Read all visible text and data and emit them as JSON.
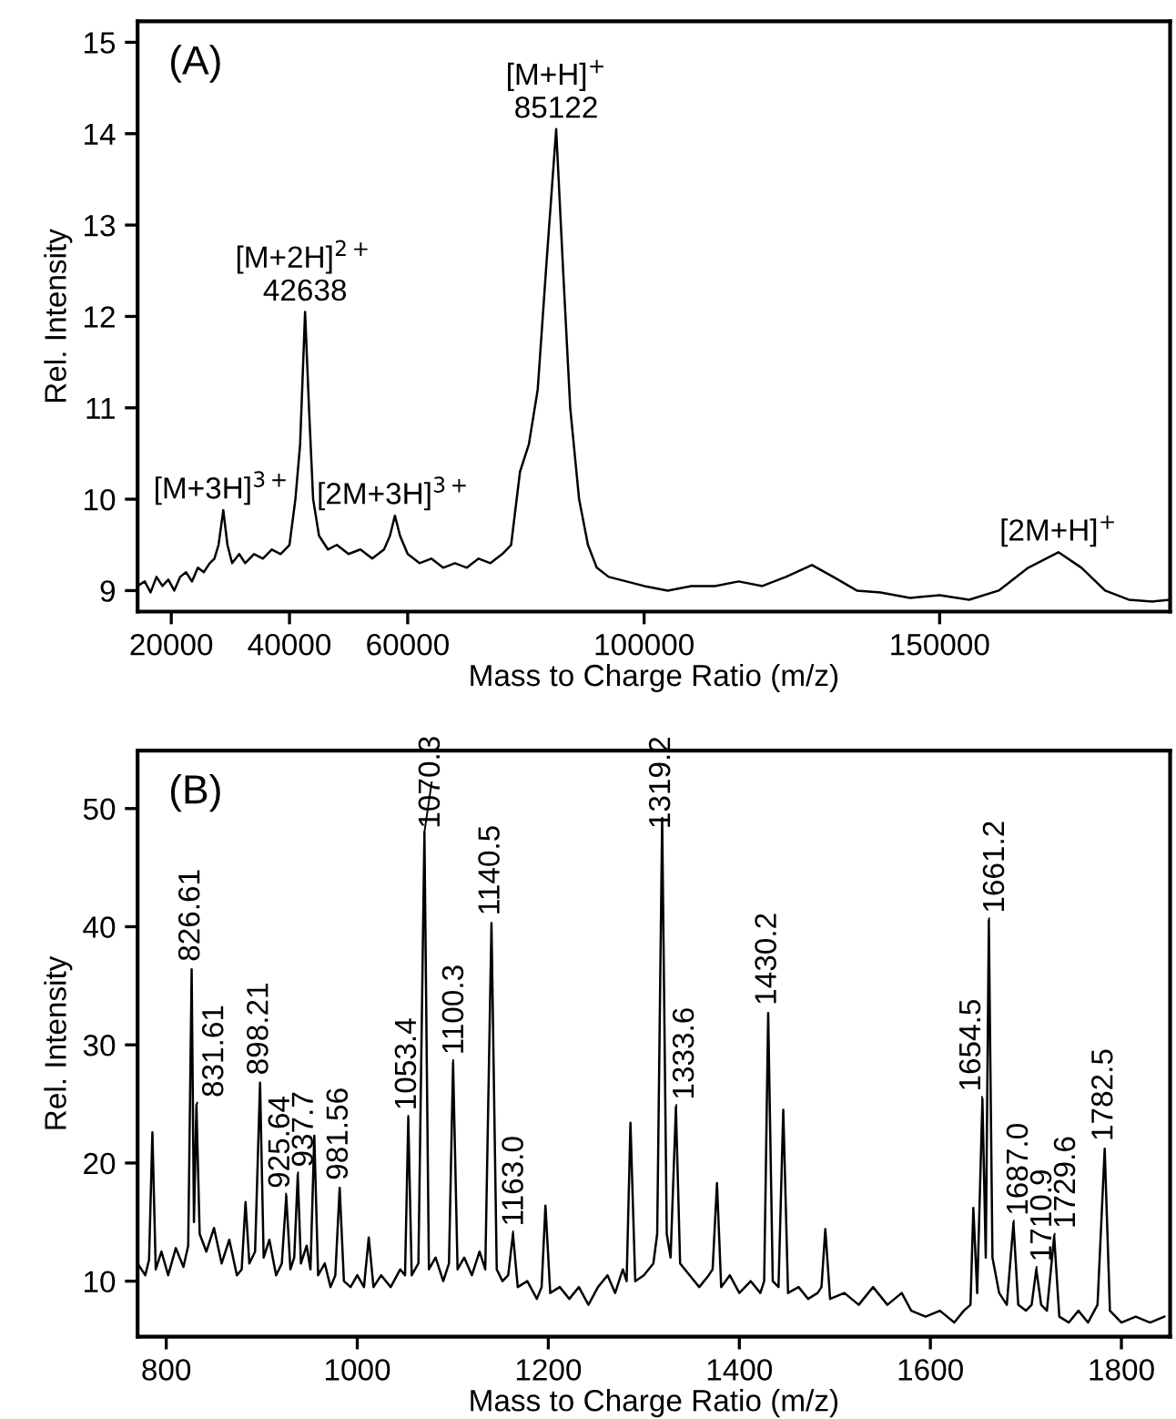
{
  "chart_data": [
    {
      "type": "line",
      "xlabel": "Mass to Charge Ratio (m/z)",
      "ylabel": "Rel. Intensity",
      "xlim": [
        14300,
        189000
      ],
      "ylim": [
        8.77,
        15.23
      ],
      "xticks": [
        20000,
        40000,
        60000,
        100000,
        150000
      ],
      "yticks": [
        9,
        10,
        11,
        12,
        13,
        14,
        15
      ],
      "series": [
        {
          "color": "#000000",
          "x": [
            14300,
            15500,
            16500,
            17500,
            18500,
            19500,
            20500,
            21500,
            22500,
            23500,
            24500,
            25500,
            26500,
            27300,
            28000,
            28800,
            29500,
            30300,
            31500,
            32500,
            34000,
            35500,
            37000,
            38500,
            40000,
            41000,
            41800,
            42638,
            43300,
            44000,
            45000,
            46500,
            48000,
            50000,
            52000,
            54000,
            56000,
            57000,
            57840,
            58700,
            60000,
            62000,
            64000,
            66000,
            68000,
            70000,
            72000,
            74000,
            76000,
            77500,
            79000,
            80500,
            82000,
            83500,
            85122,
            86300,
            87500,
            89000,
            90500,
            92000,
            94000,
            97000,
            100000,
            104000,
            108000,
            112000,
            116000,
            120000,
            124000,
            128400,
            132000,
            136000,
            140000,
            145000,
            150000,
            155000,
            160000,
            165000,
            170100,
            174000,
            178000,
            182000,
            186000,
            189000
          ],
          "values": [
            9.05,
            9.1,
            8.98,
            9.15,
            9.05,
            9.12,
            9.0,
            9.15,
            9.2,
            9.1,
            9.25,
            9.2,
            9.3,
            9.35,
            9.5,
            9.88,
            9.5,
            9.3,
            9.4,
            9.3,
            9.4,
            9.35,
            9.45,
            9.4,
            9.5,
            10.0,
            10.6,
            12.05,
            11.0,
            10.0,
            9.6,
            9.45,
            9.5,
            9.4,
            9.45,
            9.35,
            9.45,
            9.6,
            9.82,
            9.6,
            9.4,
            9.3,
            9.35,
            9.25,
            9.3,
            9.25,
            9.35,
            9.3,
            9.4,
            9.5,
            10.3,
            10.6,
            11.2,
            12.6,
            14.05,
            12.5,
            11.0,
            10.0,
            9.5,
            9.25,
            9.15,
            9.1,
            9.05,
            9.0,
            9.05,
            9.05,
            9.1,
            9.05,
            9.15,
            9.28,
            9.15,
            9.0,
            8.98,
            8.92,
            8.95,
            8.9,
            9.0,
            9.25,
            9.42,
            9.25,
            9.0,
            8.9,
            8.88,
            8.9
          ]
        }
      ],
      "annotations": [
        "(A)",
        {
          "text": "[M+3H]$^{3+}$",
          "x": 28800,
          "y": 9.88
        },
        {
          "text": "[M+2H]$^{2+}$\n42638",
          "x": 42638,
          "y": 12.05
        },
        {
          "text": "[2M+3H]$^{3+}$",
          "x": 57840,
          "y": 9.82
        },
        {
          "text": "[M+H]$^{+}$\n85122",
          "x": 85122,
          "y": 14.05
        },
        {
          "text": "[2M+H]$^{+}$",
          "x": 170100,
          "y": 9.42
        }
      ]
    },
    {
      "type": "line",
      "xlabel": "Mass to Charge Ratio (m/z)",
      "ylabel": "Rel. Intensity",
      "xlim": [
        770,
        1851
      ],
      "ylim": [
        5.3,
        54.9
      ],
      "xticks": [
        800,
        1000,
        1200,
        1400,
        1600,
        1800
      ],
      "yticks": [
        10,
        20,
        30,
        40,
        50
      ],
      "series": [
        {
          "color": "#000000",
          "x": [
            770,
            778,
            782,
            785.5,
            789,
            795,
            802,
            810,
            818,
            823,
            826.61,
            829,
            831.61,
            835,
            842,
            850,
            858,
            866,
            874,
            879,
            883,
            887,
            893,
            898.21,
            902,
            908,
            915,
            921,
            925.64,
            930,
            934,
            937.7,
            941,
            947,
            951,
            955,
            959,
            966,
            972,
            977,
            981.56,
            986,
            993,
            1000,
            1007,
            1012,
            1017,
            1025,
            1035,
            1045,
            1050,
            1053.4,
            1057,
            1064,
            1070.3,
            1075,
            1082,
            1090,
            1096,
            1100.3,
            1105,
            1112,
            1120,
            1128,
            1134,
            1140.5,
            1146,
            1152,
            1158,
            1163,
            1168,
            1178,
            1188,
            1193,
            1197,
            1202,
            1212,
            1222,
            1232,
            1242,
            1252,
            1262,
            1270,
            1278,
            1282,
            1286,
            1291,
            1300,
            1310,
            1314,
            1319.2,
            1324,
            1328,
            1333.6,
            1338,
            1348,
            1358,
            1368,
            1372,
            1376.6,
            1381,
            1390,
            1400,
            1412,
            1422,
            1426,
            1430.2,
            1435,
            1441,
            1446,
            1451,
            1462,
            1472,
            1482,
            1486,
            1490,
            1495,
            1510,
            1525,
            1540,
            1555,
            1570,
            1580,
            1595,
            1610,
            1625,
            1635,
            1642,
            1645,
            1649,
            1654.5,
            1658,
            1661.2,
            1665,
            1672,
            1680,
            1687,
            1692,
            1700,
            1706,
            1710.9,
            1716,
            1722,
            1729.6,
            1735,
            1745,
            1755,
            1765,
            1775,
            1782.5,
            1788,
            1800,
            1815,
            1830,
            1845
          ],
          "values": [
            11.5,
            10.5,
            11.8,
            22.6,
            11,
            12.5,
            10.5,
            12.8,
            11.2,
            13,
            36.4,
            15,
            24.9,
            14,
            12.5,
            14.5,
            11.5,
            13.5,
            10.5,
            11,
            16.7,
            11.5,
            12.5,
            26.8,
            12,
            13.5,
            10.5,
            11.5,
            17.2,
            11,
            12,
            19.0,
            11.5,
            13,
            11,
            22.3,
            10.5,
            11.5,
            9.5,
            10.5,
            17.9,
            10,
            9.5,
            10.5,
            9.5,
            13.7,
            9.5,
            10.5,
            9.5,
            11,
            10.5,
            23.8,
            10.5,
            11.5,
            48,
            11,
            12,
            10,
            11.5,
            28.5,
            11,
            12,
            10.5,
            12.5,
            11,
            40.3,
            11,
            10,
            10.5,
            14.0,
            9.5,
            10,
            8.5,
            9.5,
            16.4,
            9,
            9.5,
            8.5,
            9.5,
            8,
            9.5,
            10.5,
            9,
            11,
            10,
            23.4,
            10,
            10.5,
            11.5,
            14,
            49.2,
            14,
            12,
            24.7,
            11.5,
            10.5,
            9.5,
            10.5,
            11,
            18.3,
            9.5,
            10.5,
            9,
            10,
            9,
            10,
            32.7,
            10,
            9.5,
            24.5,
            9,
            9.5,
            8.5,
            9,
            9.5,
            14.4,
            8.5,
            9,
            8,
            9.5,
            8,
            9,
            7.5,
            7,
            7.5,
            6.5,
            7.5,
            8,
            16.2,
            9,
            25.4,
            12,
            40.5,
            12,
            9,
            8,
            14.9,
            8,
            7.5,
            8,
            11.0,
            8,
            7.5,
            13.8,
            7,
            6.5,
            7.5,
            6.5,
            8,
            21.2,
            7.5,
            6.5,
            7,
            6.5,
            7
          ]
        }
      ],
      "annotations": [
        "(B)",
        {
          "text": "826.61",
          "x": 826.61,
          "y": 36.4
        },
        {
          "text": "831.61",
          "x": 831.61,
          "y": 24.9
        },
        {
          "text": "898.21",
          "x": 898.21,
          "y": 26.8
        },
        {
          "text": "925.64",
          "x": 925.64,
          "y": 17.2
        },
        {
          "text": "937.7",
          "x": 937.7,
          "y": 19.0
        },
        {
          "text": "981.56",
          "x": 981.56,
          "y": 17.9
        },
        {
          "text": "1053.4",
          "x": 1053.4,
          "y": 23.8
        },
        {
          "text": "1070.3",
          "x": 1070.3,
          "y": 48
        },
        {
          "text": "1100.3",
          "x": 1100.3,
          "y": 28.5
        },
        {
          "text": "1140.5",
          "x": 1140.5,
          "y": 40.3
        },
        {
          "text": "1163.0",
          "x": 1163.0,
          "y": 14.0
        },
        {
          "text": "1319.2",
          "x": 1319.2,
          "y": 49.2
        },
        {
          "text": "1333.6",
          "x": 1333.6,
          "y": 24.7
        },
        {
          "text": "1430.2",
          "x": 1430.2,
          "y": 32.7
        },
        {
          "text": "1654.5",
          "x": 1654.5,
          "y": 25.4
        },
        {
          "text": "1661.2",
          "x": 1661.2,
          "y": 40.5
        },
        {
          "text": "1687.0",
          "x": 1687.0,
          "y": 14.9
        },
        {
          "text": "1710.9",
          "x": 1710.9,
          "y": 11.0
        },
        {
          "text": "1729.6",
          "x": 1729.6,
          "y": 13.8
        },
        {
          "text": "1782.5",
          "x": 1782.5,
          "y": 21.2
        }
      ]
    }
  ]
}
